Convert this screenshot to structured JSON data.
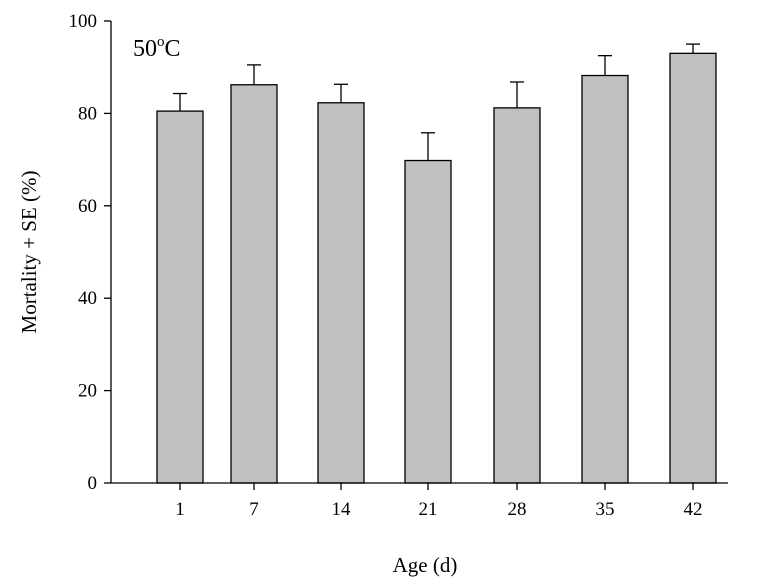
{
  "chart_data": {
    "type": "bar",
    "title": "",
    "annotation": {
      "base": "50",
      "superscript": "o",
      "unit": "C"
    },
    "xlabel": "Age (d)",
    "ylabel": "Mortality + SE (%)",
    "categories": [
      "1",
      "7",
      "14",
      "21",
      "28",
      "35",
      "42"
    ],
    "values": [
      80.5,
      86.2,
      82.3,
      69.8,
      81.2,
      88.2,
      93.0
    ],
    "se": [
      3.8,
      4.3,
      4.0,
      6.0,
      5.6,
      4.3,
      2.0
    ],
    "ylim": [
      0,
      100
    ],
    "yticks": [
      0,
      20,
      40,
      60,
      80,
      100
    ],
    "grid": false,
    "bar_color": "#c0c0c0"
  }
}
